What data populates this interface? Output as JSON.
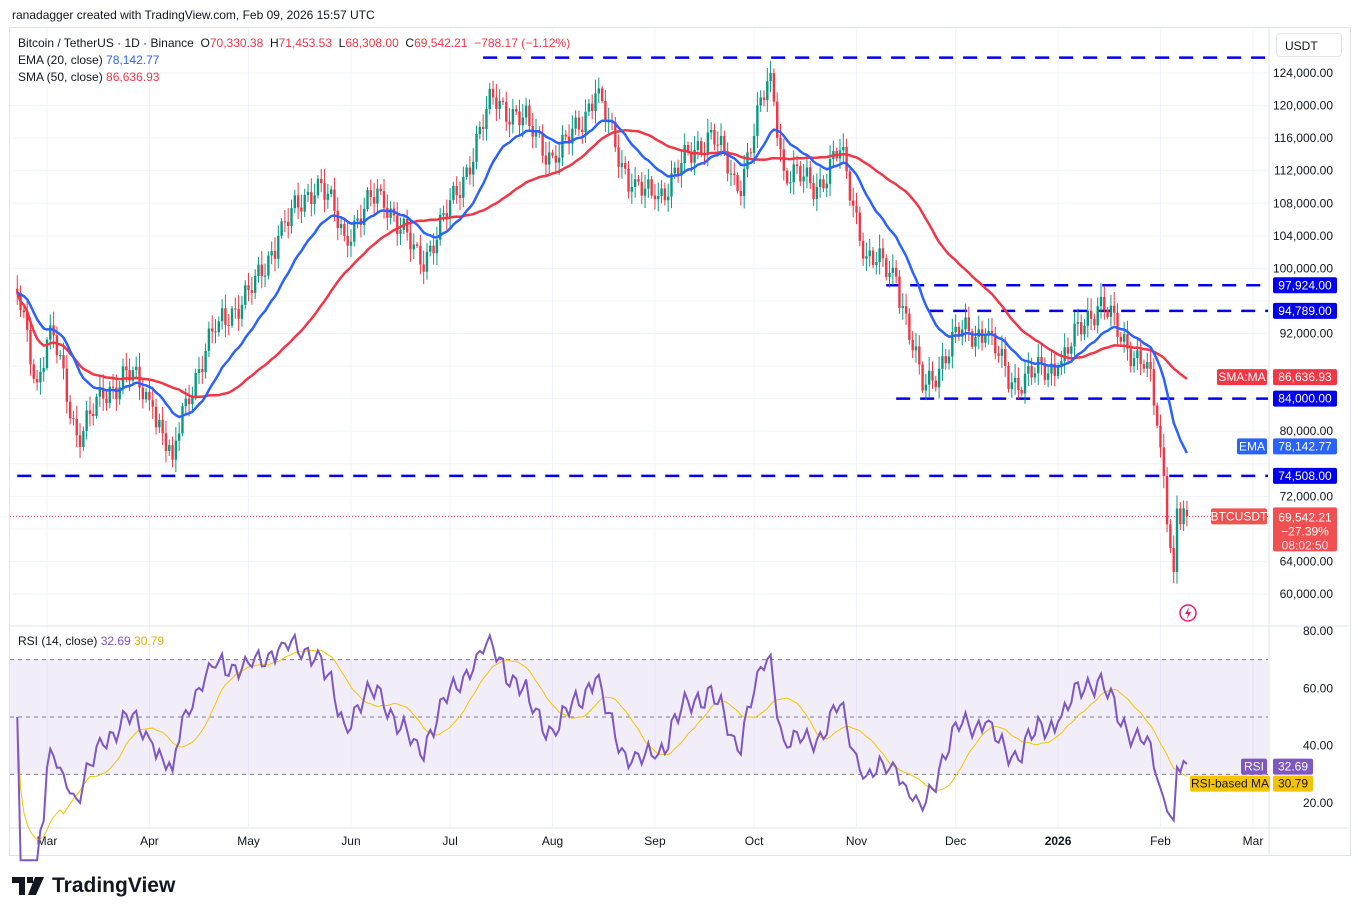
{
  "credit": "ranadagger created with TradingView.com, Feb 09, 2026 15:57 UTC",
  "legend": {
    "symbol": "Bitcoin / TetherUS · 1D · Binance",
    "o_label": "O",
    "o": "70,330.38",
    "h_label": "H",
    "h": "71,453.53",
    "l_label": "L",
    "l": "68,308.00",
    "c_label": "C",
    "c": "69,542.21",
    "change": "−788.17 (−1.12%)",
    "ema_label": "EMA (20, close)",
    "ema": "78,142.77",
    "sma_label": "SMA (50, close)",
    "sma": "86,636.93"
  },
  "currency": "USDT",
  "rsi_legend": {
    "label": "RSI (14, close)",
    "rsi": "32.69",
    "ma": "30.79"
  },
  "badges": {
    "sma_tag": "SMA:MA",
    "sma": "86,636.93",
    "ema_tag": "EMA",
    "ema": "78,142.77",
    "sym_tag": "BTCUSDT",
    "price": "69,542.21",
    "pct": "−27.39%",
    "countdown": "08:02:50",
    "rsi_tag": "RSI",
    "rsi": "32.69",
    "rsima_tag": "RSI-based MA",
    "rsima": "30.79"
  },
  "colors": {
    "up": "#089981",
    "down": "#f23645",
    "ema": "#2962ff",
    "sma": "#f23645",
    "level": "#0000ee",
    "rsi": "#7e57c2",
    "rsima": "#f5c400"
  },
  "logo": "TradingView",
  "chart_data": {
    "type": "candlestick",
    "symbol": "BTCUSDT",
    "interval": "1D",
    "ylim": [
      58000,
      128000
    ],
    "price_ticks": [
      60000,
      64000,
      68000,
      72000,
      76000,
      80000,
      84000,
      88000,
      92000,
      96000,
      100000,
      104000,
      108000,
      112000,
      116000,
      120000,
      124000
    ],
    "time_ticks": [
      [
        "2025-03-01",
        "Mar"
      ],
      [
        "2025-04-01",
        "Apr"
      ],
      [
        "2025-05-01",
        "May"
      ],
      [
        "2025-06-01",
        "Jun"
      ],
      [
        "2025-07-01",
        "Jul"
      ],
      [
        "2025-08-01",
        "Aug"
      ],
      [
        "2025-09-01",
        "Sep"
      ],
      [
        "2025-10-01",
        "Oct"
      ],
      [
        "2025-11-01",
        "Nov"
      ],
      [
        "2025-12-01",
        "Dec"
      ],
      [
        "2026-01-01",
        "2026"
      ],
      [
        "2026-02-01",
        "Feb"
      ],
      [
        "2026-03-01",
        "Mar"
      ]
    ],
    "key_closes": [
      [
        "2025-02-20",
        97000
      ],
      [
        "2025-02-26",
        86000
      ],
      [
        "2025-03-02",
        93000
      ],
      [
        "2025-03-10",
        79500
      ],
      [
        "2025-03-18",
        84000
      ],
      [
        "2025-03-25",
        87500
      ],
      [
        "2025-04-02",
        83000
      ],
      [
        "2025-04-08",
        76500
      ],
      [
        "2025-04-12",
        84000
      ],
      [
        "2025-04-22",
        93500
      ],
      [
        "2025-05-02",
        97000
      ],
      [
        "2025-05-10",
        104000
      ],
      [
        "2025-05-22",
        111000
      ],
      [
        "2025-05-30",
        104000
      ],
      [
        "2025-06-10",
        109500
      ],
      [
        "2025-06-22",
        100500
      ],
      [
        "2025-07-03",
        109000
      ],
      [
        "2025-07-14",
        121000
      ],
      [
        "2025-07-25",
        117500
      ],
      [
        "2025-08-02",
        113000
      ],
      [
        "2025-08-14",
        121500
      ],
      [
        "2025-08-25",
        110000
      ],
      [
        "2025-09-01",
        108500
      ],
      [
        "2025-09-18",
        117000
      ],
      [
        "2025-09-26",
        109500
      ],
      [
        "2025-10-06",
        124000
      ],
      [
        "2025-10-10",
        112000
      ],
      [
        "2025-10-20",
        110000
      ],
      [
        "2025-10-27",
        114500
      ],
      [
        "2025-11-04",
        101500
      ],
      [
        "2025-11-13",
        99000
      ],
      [
        "2025-11-21",
        85000
      ],
      [
        "2025-12-03",
        92500
      ],
      [
        "2025-12-10",
        92000
      ],
      [
        "2025-12-18",
        86000
      ],
      [
        "2026-01-01",
        88000
      ],
      [
        "2026-01-14",
        96500
      ],
      [
        "2026-01-20",
        91000
      ],
      [
        "2026-01-28",
        88500
      ],
      [
        "2026-02-01",
        78000
      ],
      [
        "2026-02-05",
        62700
      ],
      [
        "2026-02-06",
        70500
      ],
      [
        "2026-02-09",
        69542.21
      ]
    ],
    "last_candle": {
      "date": "2026-02-09",
      "open": 70330.38,
      "high": 71453.53,
      "low": 68308.0,
      "close": 69542.21
    },
    "indicators": {
      "ema": {
        "period": 20,
        "last": 78142.77
      },
      "sma": {
        "period": 50,
        "last": 86636.93
      },
      "rsi": {
        "period": 14,
        "last": 32.69,
        "ma_last": 30.79,
        "levels": [
          70,
          50,
          30
        ],
        "ticks": [
          20,
          40,
          60,
          80
        ]
      }
    },
    "levels": [
      {
        "value": 125900,
        "from": "2025-07-11",
        "label": ""
      },
      {
        "value": 97924,
        "from": "2025-11-10",
        "label": "97,924.00"
      },
      {
        "value": 94789,
        "from": "2025-11-23",
        "label": "94,789.00"
      },
      {
        "value": 84000,
        "from": "2025-11-13",
        "label": "84,000.00"
      },
      {
        "value": 74508,
        "from": "2025-02-20",
        "label": "74,508.00"
      }
    ]
  }
}
